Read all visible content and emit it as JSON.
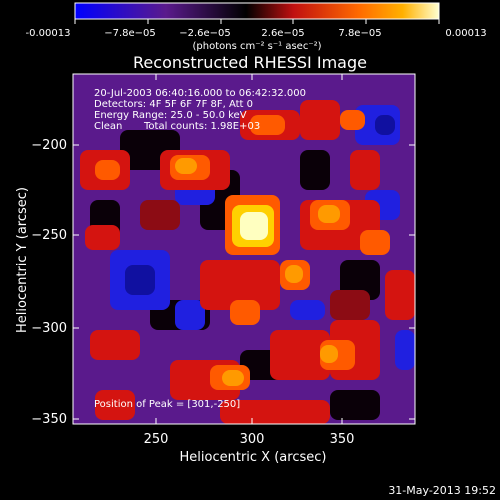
{
  "colorbar": {
    "ticks": [
      "-0.00013",
      "−7.8e−05",
      "−2.6e−05",
      "2.6e−05",
      "7.8e−05",
      "0.00013"
    ],
    "units": "(photons cm⁻² s⁻¹ asec⁻²)"
  },
  "plot": {
    "title": "Reconstructed RHESSI Image",
    "xlabel": "Heliocentric X (arcsec)",
    "ylabel": "Heliocentric Y (arcsec)",
    "xticks": [
      "250",
      "300",
      "350"
    ],
    "yticks": [
      "−200",
      "−250",
      "−300",
      "−350"
    ]
  },
  "annotations": {
    "time_range": "20-Jul-2003 06:40:16.000 to 06:42:32.000",
    "detectors": "Detectors: 4F 5F 6F 7F 8F, Att 0",
    "energy": "Energy Range: 25.0 - 50.0 keV",
    "algorithm": "Clean",
    "total_counts": "Total counts: 1.98E+03",
    "peak": "Position of Peak = [301,-250]"
  },
  "footer": {
    "date": "31-May-2013 19:52"
  },
  "chart_data": {
    "type": "heatmap",
    "title": "Reconstructed RHESSI Image",
    "xlabel": "Heliocentric X (arcsec)",
    "ylabel": "Heliocentric Y (arcsec)",
    "xlim": [
      205,
      395
    ],
    "ylim": [
      -355,
      -175
    ],
    "colorbar_range": [
      -0.00013,
      0.00013
    ],
    "peak": [
      301,
      -250
    ],
    "total_counts": 1980,
    "energy_range_keV": [
      25.0,
      50.0
    ],
    "colormap": [
      "#0000ff",
      "#5a1a8c",
      "#000000",
      "#cc1010",
      "#ff6a00",
      "#ffb000",
      "#ffffcc"
    ]
  }
}
